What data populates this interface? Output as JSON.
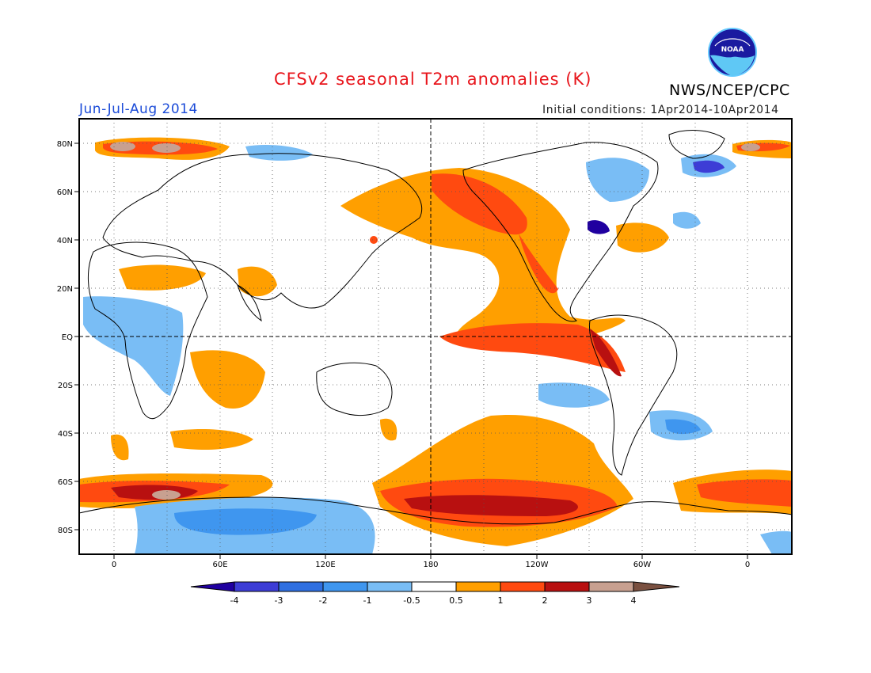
{
  "header": {
    "title": "CFSv2 seasonal T2m anomalies (K)",
    "period": "Jun-Jul-Aug 2014",
    "initial_conditions": "Initial conditions: 1Apr2014-10Apr2014",
    "agency": "NWS/NCEP/CPC",
    "logo_text": "NOAA"
  },
  "colors": {
    "title": "#e8141b",
    "period": "#1b4bd8",
    "levels": [
      "#2000a0",
      "#3d3dd6",
      "#2f6fe0",
      "#3f96ef",
      "#79bdf5",
      "#ffffff",
      "#ff9f00",
      "#ff4a10",
      "#b81010",
      "#c8a090",
      "#7a5040"
    ]
  },
  "axes": {
    "lat_ticks": [
      "80N",
      "60N",
      "40N",
      "20N",
      "EQ",
      "20S",
      "40S",
      "60S",
      "80S"
    ],
    "lon_ticks": [
      "0",
      "60E",
      "120E",
      "180",
      "120W",
      "60W",
      "0"
    ]
  },
  "colorbar": {
    "ticks": [
      "-4",
      "-3",
      "-2",
      "-1",
      "-0.5",
      "0.5",
      "1",
      "2",
      "3",
      "4"
    ]
  }
}
